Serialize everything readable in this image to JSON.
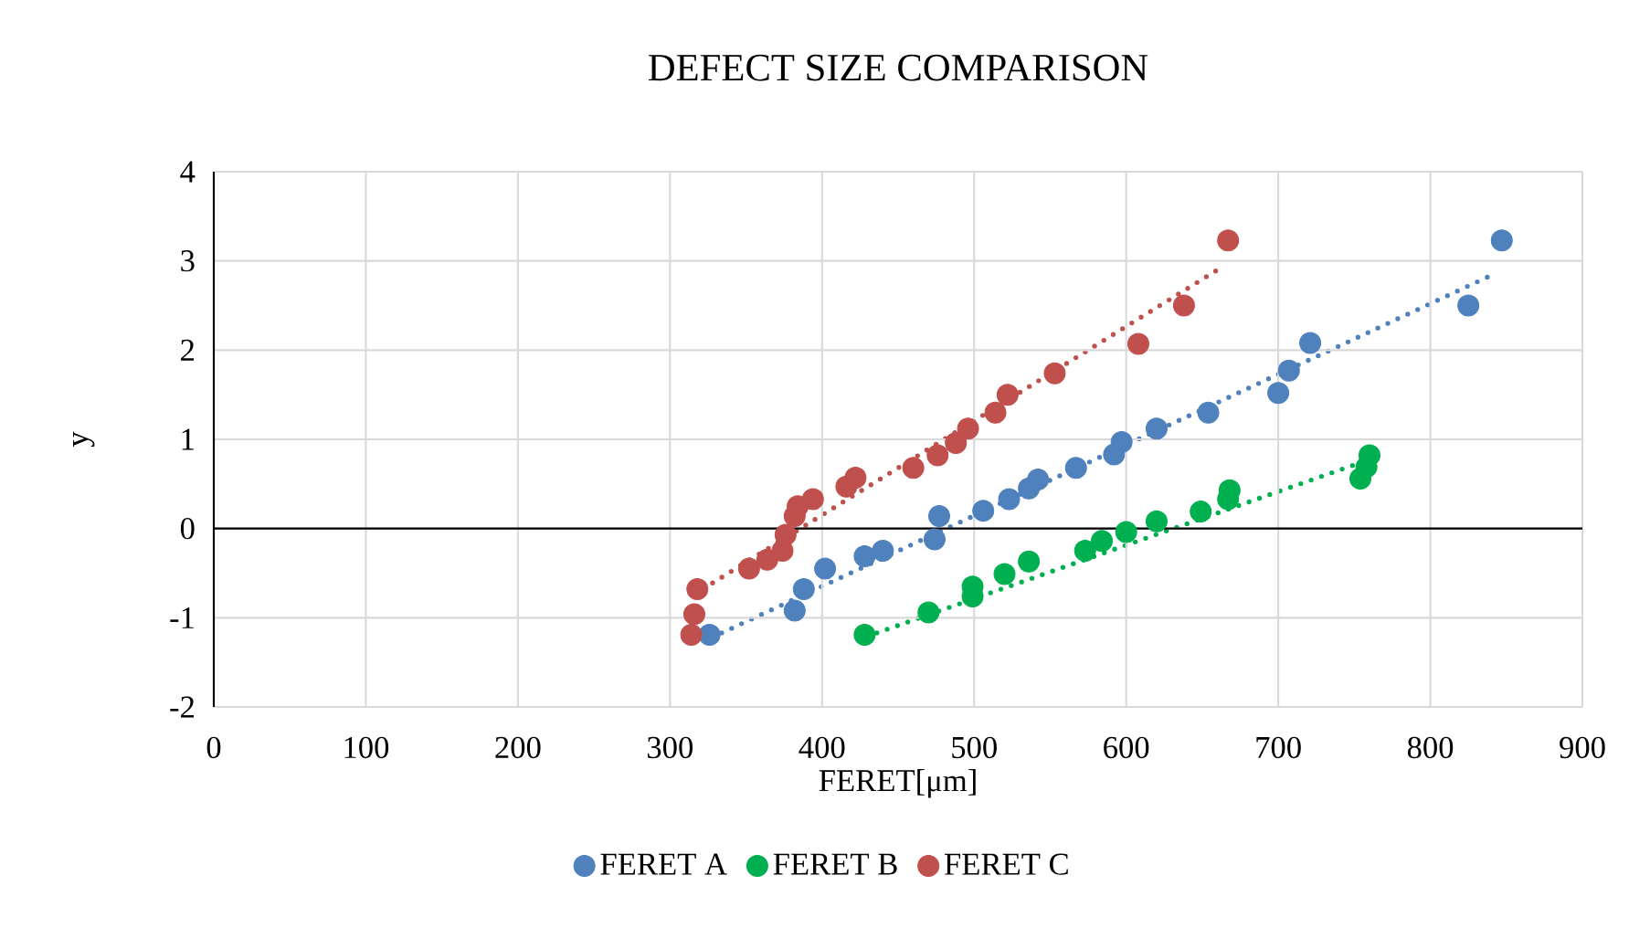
{
  "chart_data": {
    "type": "scatter",
    "title": "DEFECT SIZE COMPARISON",
    "xlabel": "FERET[μm]",
    "ylabel": "y",
    "xlim": [
      0,
      900
    ],
    "ylim": [
      -2,
      4
    ],
    "xticks": [
      0,
      100,
      200,
      300,
      400,
      500,
      600,
      700,
      800,
      900
    ],
    "yticks": [
      -2,
      -1,
      0,
      1,
      2,
      3,
      4
    ],
    "grid": true,
    "legend": "bottom",
    "marker": "circle",
    "series": [
      {
        "name": "FERET A",
        "color": "#4f81bd",
        "x": [
          326,
          382,
          388,
          402,
          428,
          440,
          474,
          476,
          477,
          506,
          523,
          536,
          542,
          567,
          592,
          597,
          620,
          654,
          700,
          707,
          721,
          825,
          847
        ],
        "values": [
          -1.19,
          -0.92,
          -0.68,
          -0.45,
          -0.31,
          -0.25,
          -0.12,
          null,
          0.14,
          0.2,
          0.33,
          0.45,
          0.55,
          0.68,
          0.83,
          0.97,
          1.12,
          1.3,
          1.52,
          1.77,
          2.08,
          2.5,
          3.23
        ]
      },
      {
        "name": "FERET B",
        "color": "#00b050",
        "x": [
          428,
          470,
          499,
          499,
          520,
          536,
          573,
          584,
          600,
          620,
          649,
          667,
          668,
          754,
          758,
          760
        ],
        "values": [
          -1.19,
          -0.94,
          -0.76,
          -0.65,
          -0.51,
          -0.37,
          -0.25,
          -0.14,
          -0.04,
          0.08,
          0.19,
          0.33,
          0.43,
          0.56,
          0.69,
          0.82
        ]
      },
      {
        "name": "FERET C",
        "color": "#c0504d",
        "x": [
          314,
          316,
          318,
          352,
          364,
          374,
          376,
          382,
          384,
          394,
          416,
          422,
          460,
          476,
          488,
          496,
          514,
          522,
          553,
          608,
          638,
          667
        ],
        "values": [
          -1.19,
          -0.96,
          -0.68,
          -0.45,
          -0.35,
          -0.25,
          -0.07,
          0.14,
          0.25,
          0.33,
          0.47,
          0.57,
          0.68,
          0.82,
          0.96,
          1.12,
          1.3,
          1.5,
          1.74,
          2.07,
          2.5,
          3.23
        ]
      },
      {
        "type": "line",
        "line_style": "dotted",
        "marker": "none",
        "color": "#4f81bd",
        "x": [
          334,
          839
        ],
        "values": [
          -1.17,
          2.83
        ]
      },
      {
        "type": "line",
        "line_style": "dotted",
        "marker": "none",
        "color": "#00b050",
        "x": [
          436,
          751
        ],
        "values": [
          -1.17,
          0.72
        ]
      },
      {
        "type": "line",
        "line_style": "dotted",
        "marker": "none",
        "color": "#c0504d",
        "x": [
          328,
          661
        ],
        "values": [
          -0.61,
          2.91
        ]
      }
    ]
  }
}
